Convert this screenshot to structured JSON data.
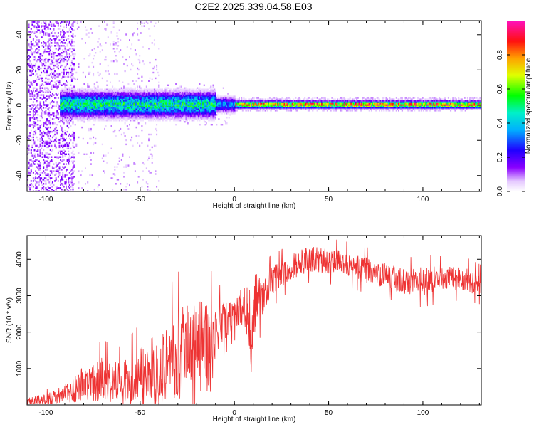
{
  "figure": {
    "title": "C2E2.2025.339.04.58.E03"
  },
  "chart_data": [
    {
      "type": "heatmap",
      "title": "C2E2.2025.339.04.58.E03",
      "xlabel": "Height of straight line (km)",
      "ylabel": "Frequency (Hz)",
      "xlim": [
        -110,
        131
      ],
      "ylim": [
        -49,
        48
      ],
      "xticks": [
        -100,
        -50,
        0,
        50,
        100
      ],
      "xtick_labels": [
        "-100",
        "-50",
        "0",
        "50",
        "100"
      ],
      "yticks": [
        -40,
        -20,
        0,
        20,
        40
      ],
      "ytick_labels": [
        "-40",
        "-20",
        "0",
        "20",
        "40"
      ],
      "colorbar": {
        "label": "Normalized spectral amplitude",
        "range": [
          0,
          1
        ],
        "ticks": [
          0.0,
          0.2,
          0.4,
          0.6,
          0.8
        ],
        "tick_labels": [
          "0.0",
          "0.2",
          "0.4",
          "0.6",
          "0.8"
        ],
        "colormap": "rainbow (white-violet-blue-cyan-green-yellow-orange-red-magenta)"
      },
      "ridge": {
        "description": "narrow high-amplitude band centred near 0 Hz",
        "center_freq_hz": 0,
        "segments": [
          {
            "x_range": [
              -93,
              -10
            ],
            "halfwidth_hz": 5,
            "peak_amplitude": 0.55
          },
          {
            "x_range": [
              -10,
              0
            ],
            "halfwidth_hz": 3,
            "peak_amplitude": 0.4
          },
          {
            "x_range": [
              0,
              131
            ],
            "halfwidth_hz": 1.5,
            "peak_amplitude": 0.95
          }
        ],
        "noise_region_x": [
          -110,
          -85
        ]
      }
    },
    {
      "type": "line",
      "xlabel": "Height of straight line (km)",
      "ylabel": "SNR (10 * v/v)",
      "xlim": [
        -110,
        131
      ],
      "ylim": [
        0,
        4650
      ],
      "xticks": [
        -100,
        -50,
        0,
        50,
        100
      ],
      "xtick_labels": [
        "-100",
        "-50",
        "0",
        "50",
        "100"
      ],
      "yticks": [
        1000,
        2000,
        3000,
        4000
      ],
      "ytick_labels": [
        "1000",
        "2000",
        "3000",
        "4000"
      ],
      "color": "#ee3333",
      "series": [
        {
          "name": "SNR",
          "x": [
            -110,
            -100,
            -90,
            -80,
            -70,
            -60,
            -50,
            -40,
            -30,
            -20,
            -12,
            -10,
            -5,
            0,
            5,
            8,
            9,
            10,
            15,
            20,
            30,
            40,
            50,
            60,
            70,
            80,
            90,
            100,
            110,
            120,
            131
          ],
          "y": [
            100,
            150,
            300,
            600,
            700,
            600,
            800,
            1000,
            1300,
            1600,
            1500,
            2100,
            2300,
            2500,
            2700,
            2400,
            1000,
            2800,
            3000,
            3400,
            3800,
            4000,
            3950,
            3850,
            3700,
            3550,
            3400,
            3400,
            3450,
            3500,
            3300
          ],
          "noise_amplitude": [
            120,
            150,
            250,
            500,
            600,
            550,
            800,
            1000,
            1300,
            1400,
            1200,
            700,
            500,
            400,
            600,
            1100,
            400,
            900,
            500,
            400,
            350,
            350,
            350,
            350,
            350,
            350,
            350,
            400,
            350,
            350,
            300
          ]
        }
      ]
    }
  ]
}
